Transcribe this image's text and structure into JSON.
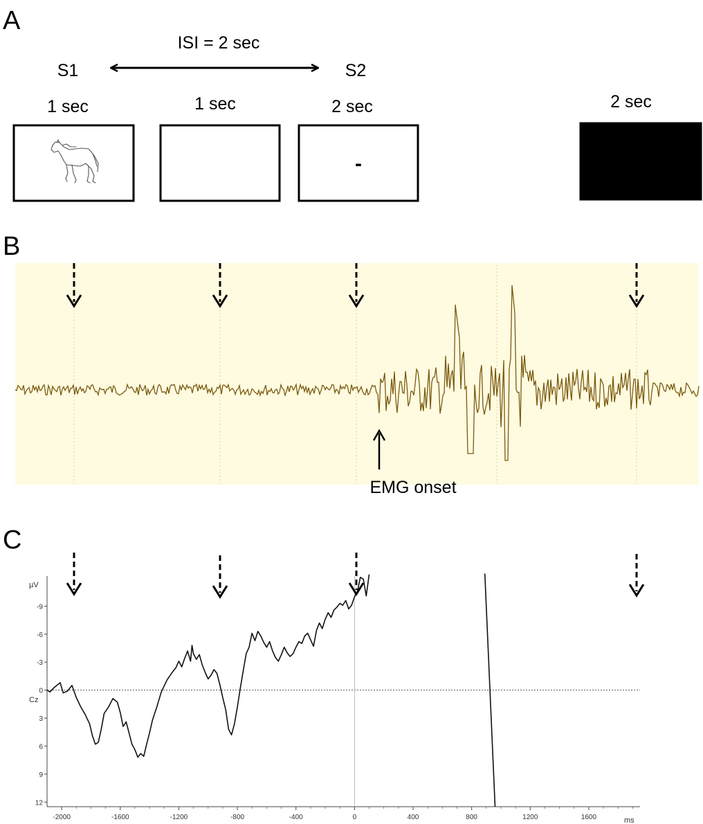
{
  "panel_a": {
    "label": "A",
    "isi_label": "ISI = 2 sec",
    "s1_label": "S1",
    "s2_label": "S2",
    "frames": [
      {
        "duration": "1 sec",
        "content": "horse-drawing"
      },
      {
        "duration": "1 sec",
        "content": "blank"
      },
      {
        "duration": "2 sec",
        "content": "-"
      },
      {
        "duration": "2 sec",
        "content": "black"
      }
    ]
  },
  "panel_b": {
    "label": "B",
    "annotation": "EMG onset",
    "background_color": "#fffbe0",
    "trace_color": "#7a5a10"
  },
  "panel_c": {
    "label": "C",
    "y_unit": "µV",
    "channel": "Cz",
    "x_unit": "ms",
    "x_ticks": [
      -2000,
      -1600,
      -1200,
      -800,
      -400,
      0,
      400,
      800,
      1200,
      1600
    ],
    "y_ticks": [
      "-9",
      "-6",
      "-3",
      "0",
      "3",
      "6",
      "9",
      "12"
    ]
  },
  "chart_data": {
    "type": "line",
    "channel": "Cz",
    "x_unit": "ms",
    "y_unit": "µV",
    "x_range": [
      -2100,
      1950
    ],
    "y_range": [
      -12,
      12.5
    ],
    "y_axis_inverted": true,
    "x_ticks": [
      -2000,
      -1600,
      -1200,
      -800,
      -400,
      0,
      400,
      800,
      1200,
      1600
    ],
    "y_ticks": [
      -9,
      -6,
      -3,
      0,
      3,
      6,
      9,
      12
    ],
    "series": [
      {
        "segment": "pre-response",
        "x": [
          -2100,
          -2080,
          -2050,
          -2010,
          -1990,
          -1960,
          -1930,
          -1900,
          -1870,
          -1840,
          -1810,
          -1790,
          -1770,
          -1750,
          -1730,
          -1710,
          -1680,
          -1650,
          -1620,
          -1600,
          -1580,
          -1560,
          -1540,
          -1520,
          -1500,
          -1480,
          -1460,
          -1440,
          -1420,
          -1400,
          -1380,
          -1350,
          -1320,
          -1280,
          -1250,
          -1220,
          -1200,
          -1180,
          -1160,
          -1140,
          -1120,
          -1110,
          -1100,
          -1080,
          -1060,
          -1040,
          -1020,
          -1000,
          -980,
          -960,
          -940,
          -920,
          -900,
          -880,
          -860,
          -840,
          -820,
          -800,
          -780,
          -760,
          -740,
          -720,
          -700,
          -680,
          -660,
          -640,
          -620,
          -600,
          -580,
          -560,
          -540,
          -520,
          -500,
          -480,
          -460,
          -440,
          -420,
          -400,
          -380,
          -360,
          -340,
          -320,
          -300,
          -280,
          -260,
          -240,
          -220,
          -200,
          -180,
          -160,
          -140,
          -120,
          -100,
          -80,
          -60,
          -40,
          -20,
          0,
          20,
          40,
          60,
          80,
          100
        ],
        "y": [
          0,
          0.2,
          -0.3,
          -0.8,
          0.3,
          0.1,
          -0.5,
          0.8,
          1.8,
          2.6,
          3.6,
          4.9,
          5.8,
          5.6,
          4.2,
          2.5,
          1.8,
          0.9,
          1.3,
          2.4,
          3.9,
          3.4,
          4.6,
          5.8,
          6.4,
          7.2,
          6.8,
          7.1,
          5.8,
          4.6,
          3.2,
          1.8,
          0.2,
          -1.1,
          -1.8,
          -2.4,
          -3.1,
          -2.5,
          -3.4,
          -4.2,
          -3.1,
          -4.8,
          -3.9,
          -3.3,
          -3.8,
          -2.7,
          -1.9,
          -1.2,
          -1.6,
          -2.2,
          -1.8,
          -0.6,
          0.8,
          2.1,
          4.2,
          4.8,
          3.6,
          1.8,
          -0.2,
          -2.1,
          -3.9,
          -4.6,
          -6.1,
          -5.3,
          -6.3,
          -5.8,
          -5.1,
          -4.6,
          -5.2,
          -4.2,
          -3.5,
          -3.1,
          -3.8,
          -4.6,
          -4.0,
          -3.6,
          -3.9,
          -4.6,
          -5.2,
          -5.0,
          -5.8,
          -6.1,
          -5.4,
          -4.7,
          -6.4,
          -7.2,
          -6.6,
          -7.6,
          -8.3,
          -7.8,
          -8.6,
          -8.9,
          -9.3,
          -9.1,
          -9.6,
          -8.7,
          -9.1,
          -10.0,
          -10.6,
          -12.1,
          -11.9,
          -10.1,
          -12.4
        ]
      },
      {
        "segment": "post-response-artifact",
        "x": [
          890,
          960
        ],
        "y": [
          -12.5,
          12.5
        ]
      }
    ]
  }
}
